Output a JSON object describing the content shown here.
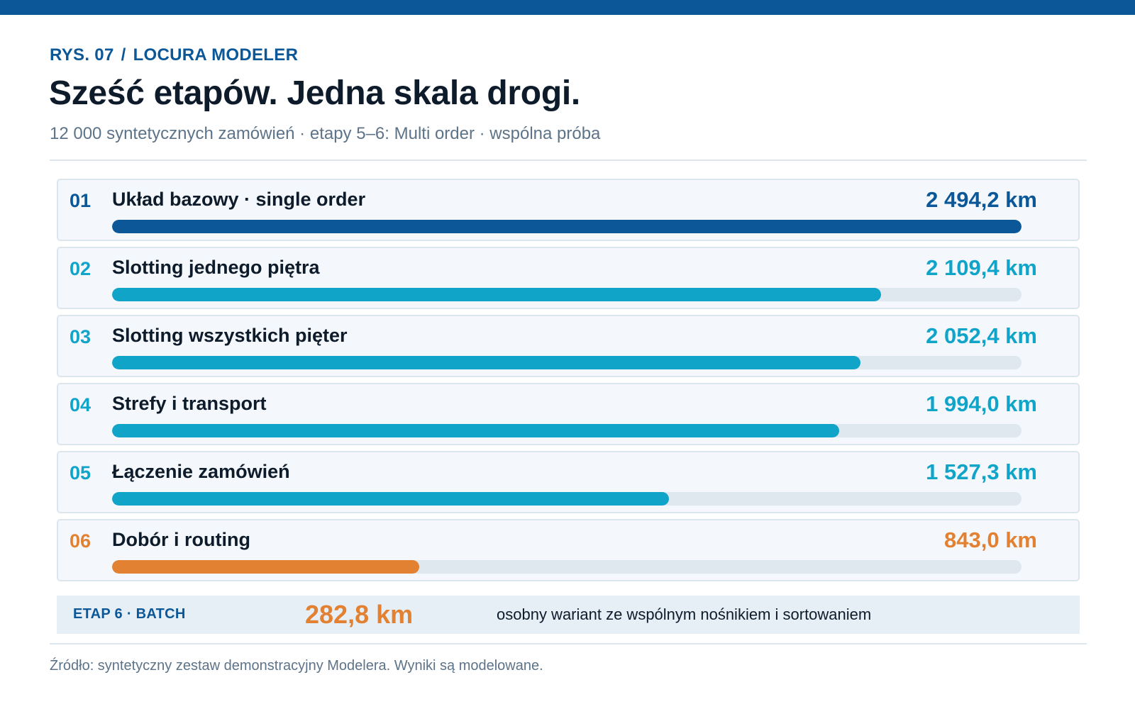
{
  "header": {
    "fig": "RYS. 07",
    "separator": "/",
    "brand": "LOCURA MODELER",
    "title": "Sześć etapów. Jedna skala drogi.",
    "subtitle": "12 000 syntetycznych zamówień · etapy 5–6: Multi order · wspólna próba"
  },
  "colors": {
    "primary": "#0b5797",
    "teal": "#11a4c9",
    "orange": "#e38133",
    "track": "#dfe7ef"
  },
  "chart_data": {
    "type": "bar",
    "orientation": "horizontal",
    "unit": "km",
    "xlim": [
      0,
      2494.2
    ],
    "categories": [
      "Układ bazowy · single order",
      "Slotting jednego piętra",
      "Slotting wszystkich pięter",
      "Strefy i transport",
      "Łączenie zamówień",
      "Dobór i routing"
    ],
    "numbers": [
      "01",
      "02",
      "03",
      "04",
      "05",
      "06"
    ],
    "values": [
      2494.2,
      2109.4,
      2052.4,
      1994.0,
      1527.3,
      843.0
    ],
    "value_labels": [
      "2 494,2 km",
      "2 109,4 km",
      "2 052,4 km",
      "1 994,0 km",
      "1 527,3 km",
      "843,0 km"
    ],
    "bar_colors": [
      "#0b5797",
      "#11a4c9",
      "#11a4c9",
      "#11a4c9",
      "#11a4c9",
      "#e38133"
    ],
    "batch": {
      "label": "ETAP 6 · BATCH",
      "value": 282.8,
      "value_label": "282,8 km",
      "note": "osobny wariant ze wspólnym nośnikiem i sortowaniem"
    }
  },
  "footer": {
    "source": "Źródło: syntetyczny zestaw demonstracyjny Modelera. Wyniki są modelowane."
  }
}
